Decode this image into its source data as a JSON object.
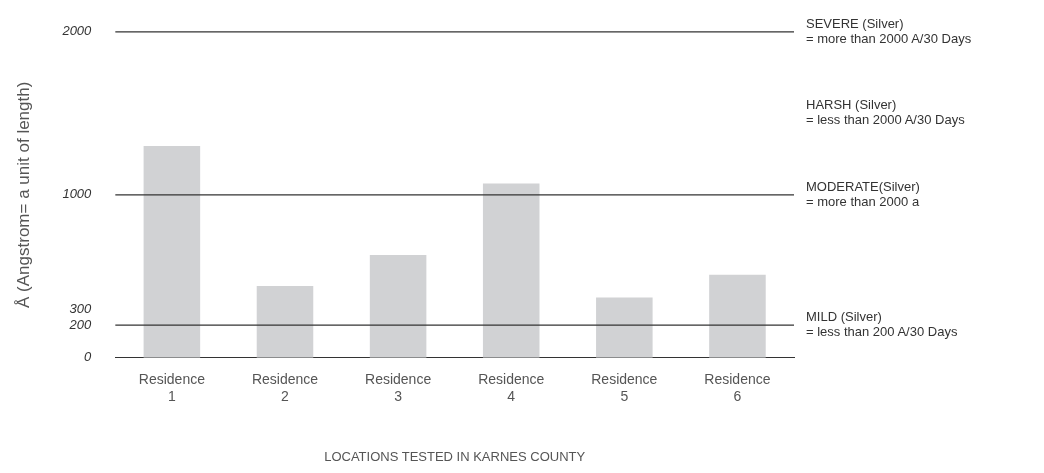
{
  "chart_data": {
    "type": "bar",
    "categories": [
      "Residence 1",
      "Residence 2",
      "Residence 3",
      "Residence 4",
      "Residence 5",
      "Residence 6"
    ],
    "values": [
      1300,
      440,
      630,
      1070,
      370,
      510
    ],
    "color": "#d1d2d4",
    "ylabel": "Å (Angstrom= a unit of length)",
    "xlabel": "LOCATIONS TESTED IN KARNES COUNTY",
    "ylim": [
      0,
      2000
    ],
    "yticks": [
      0,
      200,
      300,
      1000,
      2000
    ],
    "grid": false,
    "legend": false,
    "ref_lines": [
      {
        "axis": "y",
        "value": 1000,
        "label": "MODERATE(Silver)\n= more than 2000 a",
        "color": "#333333"
      },
      {
        "axis": "y",
        "value": 200,
        "label": "MILD (Silver)\n= less than 200 A/30 Days",
        "color": "#333333"
      }
    ],
    "annotations": [
      "SEVERE (Silver)\n= more than 2000 A/30 Days",
      "HARSH (Silver)\n= less than 2000 A/30 Days"
    ]
  }
}
